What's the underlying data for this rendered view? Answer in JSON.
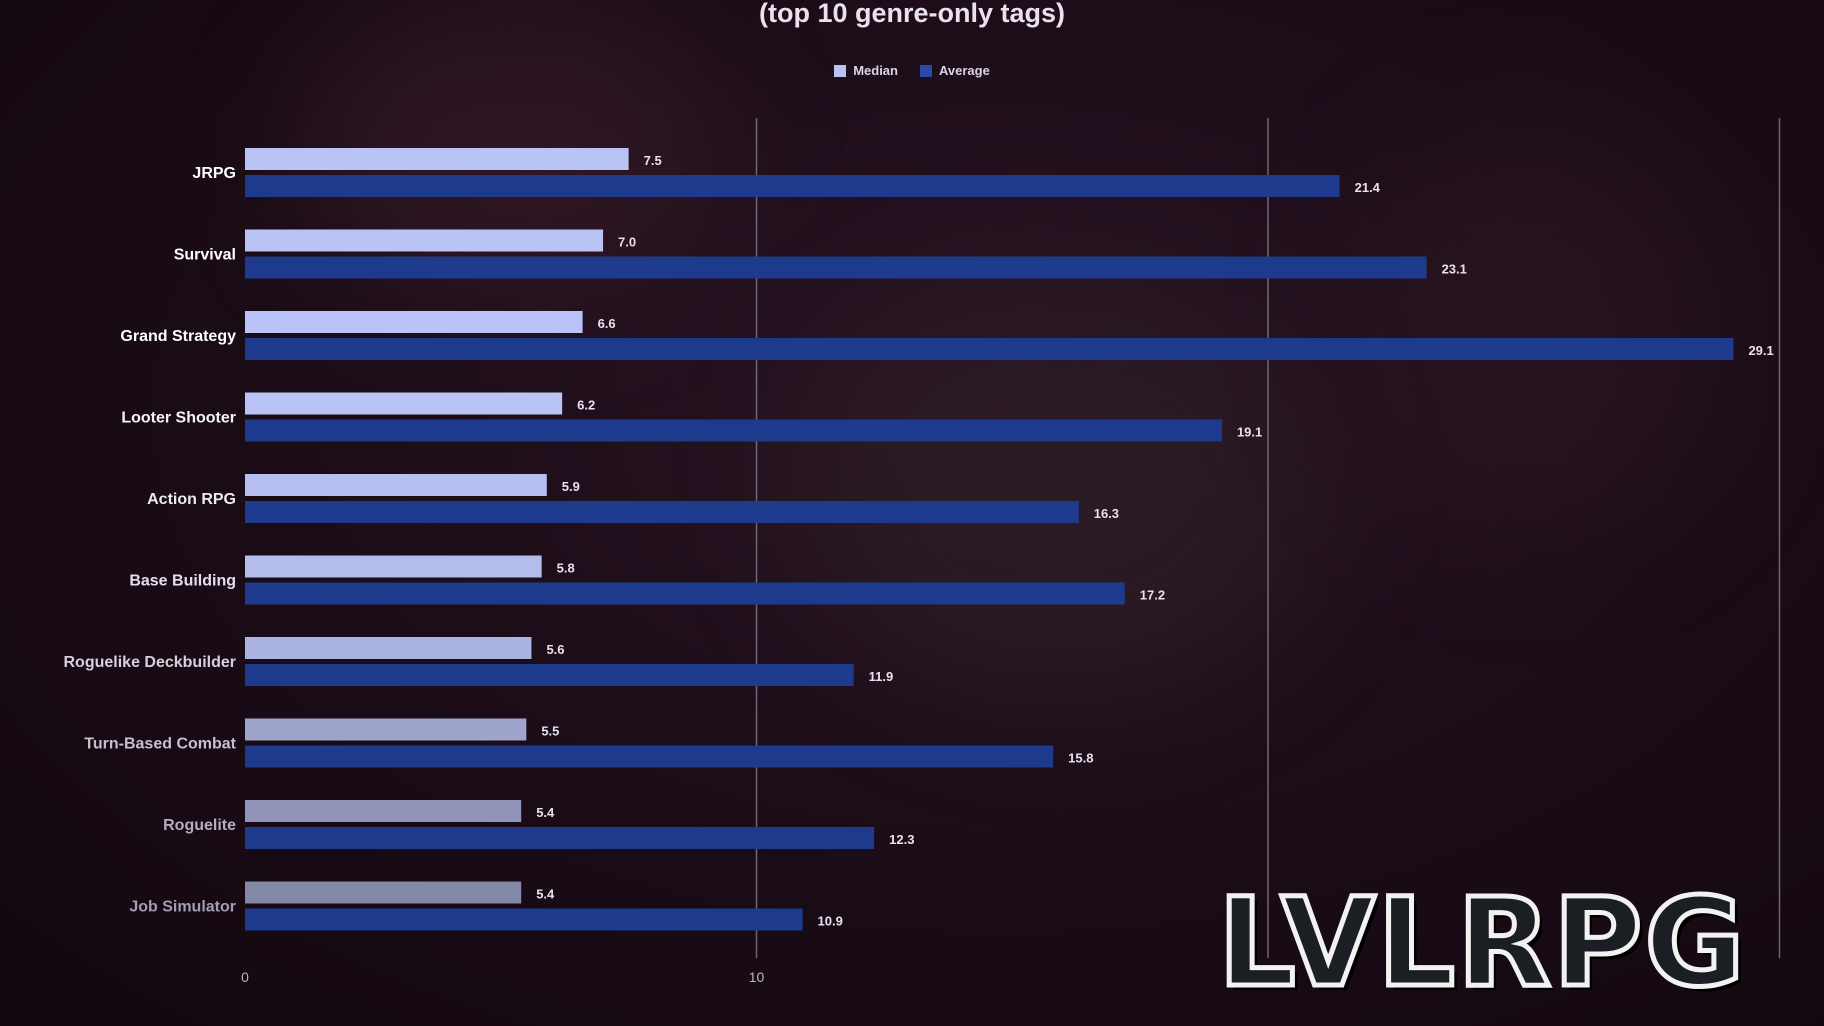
{
  "chart_data": {
    "type": "bar",
    "orientation": "horizontal",
    "title": "(top 10 genre-only tags)",
    "categories": [
      "JRPG",
      "Survival",
      "Grand Strategy",
      "Looter Shooter",
      "Action RPG",
      "Base Building",
      "Roguelike Deckbuilder",
      "Turn-Based Combat",
      "Roguelite",
      "Job Simulator"
    ],
    "series": [
      {
        "name": "Median",
        "values": [
          7.5,
          7.0,
          6.6,
          6.2,
          5.9,
          5.8,
          5.6,
          5.5,
          5.4,
          5.4
        ],
        "labels": [
          "7.5",
          "7.0",
          "6.6",
          "6.2",
          "5.9",
          "5.8",
          "5.6",
          "5.5",
          "5.4",
          "5.4"
        ]
      },
      {
        "name": "Average",
        "values": [
          21.4,
          23.1,
          29.1,
          19.1,
          16.3,
          17.2,
          11.9,
          15.8,
          12.3,
          10.9
        ],
        "labels": [
          "21.4",
          "23.1",
          "29.1",
          "19.1",
          "16.3",
          "17.2",
          "11.9",
          "15.8",
          "12.3",
          "10.9"
        ]
      }
    ],
    "xlim": [
      0,
      30
    ],
    "xticks": [
      0,
      10
    ],
    "gridlines": [
      10,
      20,
      30
    ],
    "grid": true,
    "legend": "top-center",
    "colors": {
      "median": "#b9c3f5",
      "average": "#1e3a8c"
    }
  },
  "watermark": {
    "text": "LVLRPG"
  }
}
